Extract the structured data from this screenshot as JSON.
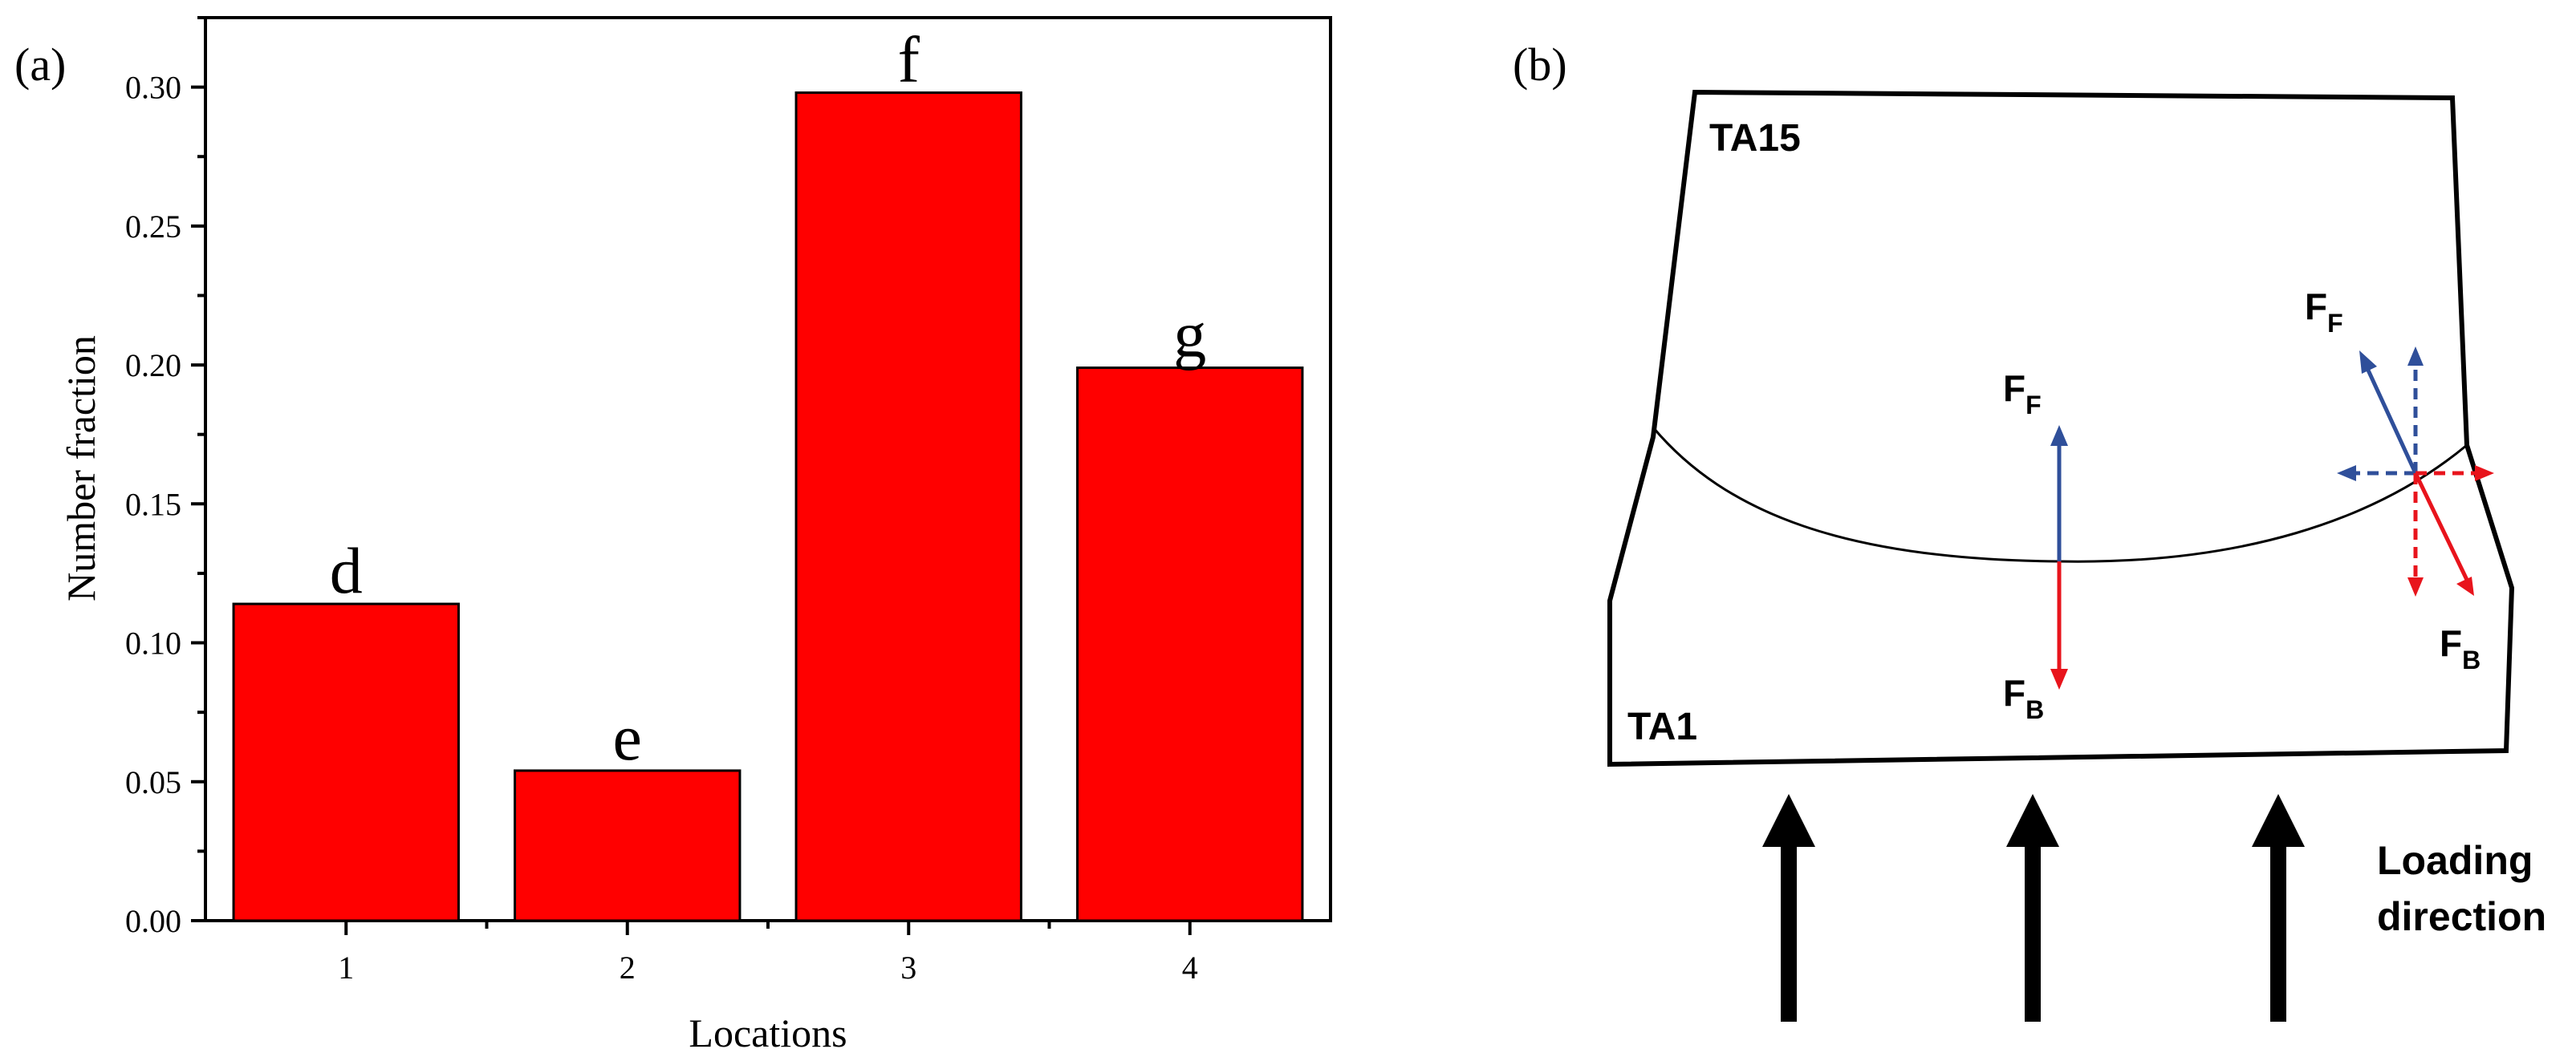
{
  "panel_a": {
    "label": "(a)"
  },
  "panel_b": {
    "label": "(b)",
    "upper_material": "TA15",
    "lower_material": "TA1",
    "center_force_up": {
      "base": "F",
      "sub": "F"
    },
    "center_force_down": {
      "base": "F",
      "sub": "B"
    },
    "right_force_up": {
      "base": "F",
      "sub": "F"
    },
    "right_force_down": {
      "base": "F",
      "sub": "B"
    },
    "loading_label_line1": "Loading",
    "loading_label_line2": "direction",
    "colors": {
      "outline": "#000000",
      "force_blue": "#2f4f9a",
      "force_red": "#e8141c",
      "loading_arrow": "#000000"
    }
  },
  "chart_data": {
    "type": "bar",
    "title": "",
    "xlabel": "Locations",
    "ylabel": "Number fraction",
    "categories": [
      "1",
      "2",
      "3",
      "4"
    ],
    "values": [
      0.114,
      0.054,
      0.298,
      0.199
    ],
    "bar_labels": [
      "d",
      "e",
      "f",
      "g"
    ],
    "ylim": [
      0,
      0.325
    ],
    "yticks": [
      "0.00",
      "0.05",
      "0.10",
      "0.15",
      "0.20",
      "0.25",
      "0.30"
    ],
    "ytick_values": [
      0,
      0.05,
      0.1,
      0.15,
      0.2,
      0.25,
      0.3
    ],
    "bar_color": "#ff0000",
    "edge_color": "#000000",
    "grid": false,
    "legend": "none"
  }
}
